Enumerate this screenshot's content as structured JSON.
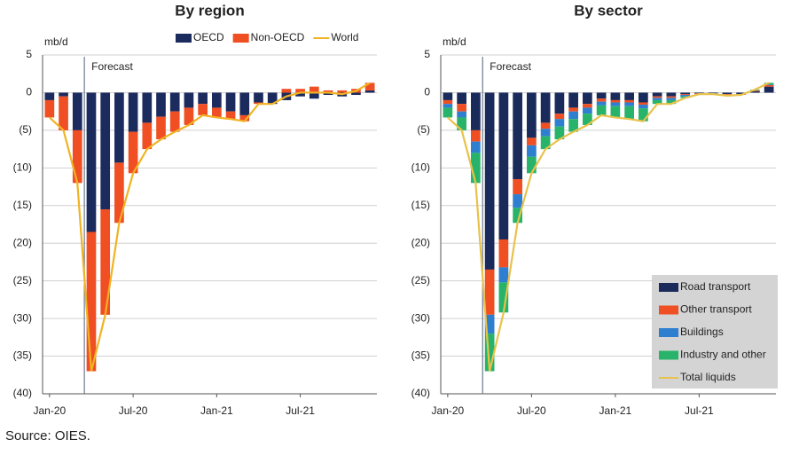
{
  "chart_data": [
    {
      "type": "bar",
      "stacked": true,
      "title": "By region",
      "ylabel": "mb/d",
      "annotation": "Forecast",
      "legend": "top",
      "grid": true,
      "categories": [
        "Jan-20",
        null,
        null,
        null,
        null,
        null,
        "Jul-20",
        null,
        null,
        null,
        null,
        null,
        "Jan-21",
        null,
        null,
        null,
        null,
        null,
        "Jul-21",
        null,
        null,
        null,
        null,
        null
      ],
      "ylim": [
        -40,
        5
      ],
      "yticks": [
        5,
        0,
        {
          "value": -5,
          "label": "(5)"
        },
        {
          "value": -10,
          "label": "(10)"
        },
        {
          "value": -15,
          "label": "(15)"
        },
        {
          "value": -20,
          "label": "(20)"
        },
        {
          "value": -25,
          "label": "(25)"
        },
        {
          "value": -30,
          "label": "(30)"
        },
        {
          "value": -35,
          "label": "(35)"
        },
        {
          "value": -40,
          "label": "(40)"
        }
      ],
      "series": [
        {
          "name": "OECD",
          "color": "#1c2b5e",
          "values": [
            -1,
            -0.5,
            -5,
            -18.5,
            -15.5,
            -9.3,
            -5.2,
            -4,
            -3.2,
            -2.5,
            -2,
            -1.5,
            -2,
            -2.5,
            -3,
            -1.3,
            -1.5,
            -1,
            -0.5,
            -0.8,
            -0.3,
            -0.5,
            -0.3,
            0.3
          ]
        },
        {
          "name": "Non-OECD",
          "color": "#f04e23",
          "values": [
            -2.3,
            -4.5,
            -7,
            -18.5,
            -14,
            -8,
            -5.5,
            -3.5,
            -3,
            -2.7,
            -2.3,
            -1.5,
            -1.3,
            -1,
            -0.8,
            -0.2,
            0,
            0.5,
            0.5,
            0.8,
            0.3,
            0.3,
            0.5,
            1
          ]
        },
        {
          "name": "World",
          "type": "line",
          "color": "#f0b323",
          "values": [
            -3.3,
            -5,
            -12,
            -37,
            -29.5,
            -17.3,
            -10.7,
            -7.5,
            -6.2,
            -5.2,
            -4.3,
            -3,
            -3.3,
            -3.5,
            -3.8,
            -1.5,
            -1.5,
            -0.5,
            0,
            0,
            0,
            -0.2,
            0.2,
            1.3
          ]
        }
      ]
    },
    {
      "type": "bar",
      "stacked": true,
      "title": "By sector",
      "ylabel": "mb/d",
      "annotation": "Forecast",
      "legend": "lower right",
      "grid": true,
      "categories": [
        "Jan-20",
        null,
        null,
        null,
        null,
        null,
        "Jul-20",
        null,
        null,
        null,
        null,
        null,
        "Jan-21",
        null,
        null,
        null,
        null,
        null,
        "Jul-21",
        null,
        null,
        null,
        null,
        null
      ],
      "ylim": [
        -40,
        5
      ],
      "yticks": [
        5,
        0,
        {
          "value": -5,
          "label": "(5)"
        },
        {
          "value": -10,
          "label": "(10)"
        },
        {
          "value": -15,
          "label": "(15)"
        },
        {
          "value": -20,
          "label": "(20)"
        },
        {
          "value": -25,
          "label": "(25)"
        },
        {
          "value": -30,
          "label": "(30)"
        },
        {
          "value": -35,
          "label": "(35)"
        },
        {
          "value": -40,
          "label": "(40)"
        }
      ],
      "series": [
        {
          "name": "Road transport",
          "color": "#1a2a5a",
          "values": [
            -1,
            -1.5,
            -5,
            -23.5,
            -19.5,
            -11.5,
            -6,
            -4,
            -2.8,
            -2,
            -1.5,
            -0.8,
            -1,
            -1,
            -1.3,
            -0.5,
            -0.5,
            -0.2,
            -0.1,
            -0.1,
            -0.2,
            -0.2,
            0.2,
            0.8
          ]
        },
        {
          "name": "Other transport",
          "color": "#f04e23",
          "values": [
            -0.5,
            -1,
            -1.5,
            -6,
            -3.7,
            -2,
            -1,
            -0.8,
            -0.7,
            -0.5,
            -0.5,
            -0.4,
            -0.3,
            -0.3,
            -0.3,
            -0.2,
            -0.2,
            -0.1,
            -0.1,
            0,
            -0.1,
            -0.1,
            0.1,
            0.2
          ]
        },
        {
          "name": "Buildings",
          "color": "#2f7fd0",
          "values": [
            -0.5,
            -0.8,
            -1.5,
            -2.5,
            -2,
            -1.8,
            -1.5,
            -1,
            -1,
            -1,
            -0.8,
            -0.5,
            -0.5,
            -0.5,
            -0.5,
            -0.3,
            -0.3,
            -0.2,
            0,
            -0.1,
            -0.1,
            0,
            0,
            0.1
          ]
        },
        {
          "name": "Industry and other",
          "color": "#27b36a",
          "values": [
            -1.3,
            -1.7,
            -4,
            -5,
            -4,
            -2,
            -2.2,
            -1.7,
            -1.7,
            -1.7,
            -1.5,
            -1.3,
            -1.5,
            -1.7,
            -1.7,
            -0.5,
            -0.5,
            -0.2,
            0,
            0,
            0,
            0,
            0.1,
            0.2
          ]
        },
        {
          "name": "Total liquids",
          "type": "line",
          "color": "#e8c24a",
          "values": [
            -3.3,
            -5,
            -12,
            -37,
            -29.2,
            -17.3,
            -10.7,
            -7.5,
            -6.2,
            -5.2,
            -4.3,
            -3,
            -3.3,
            -3.5,
            -3.8,
            -1.5,
            -1.5,
            -0.7,
            -0.2,
            -0.2,
            -0.4,
            -0.3,
            0.4,
            1.3
          ]
        }
      ]
    }
  ],
  "source": "Source: OIES."
}
